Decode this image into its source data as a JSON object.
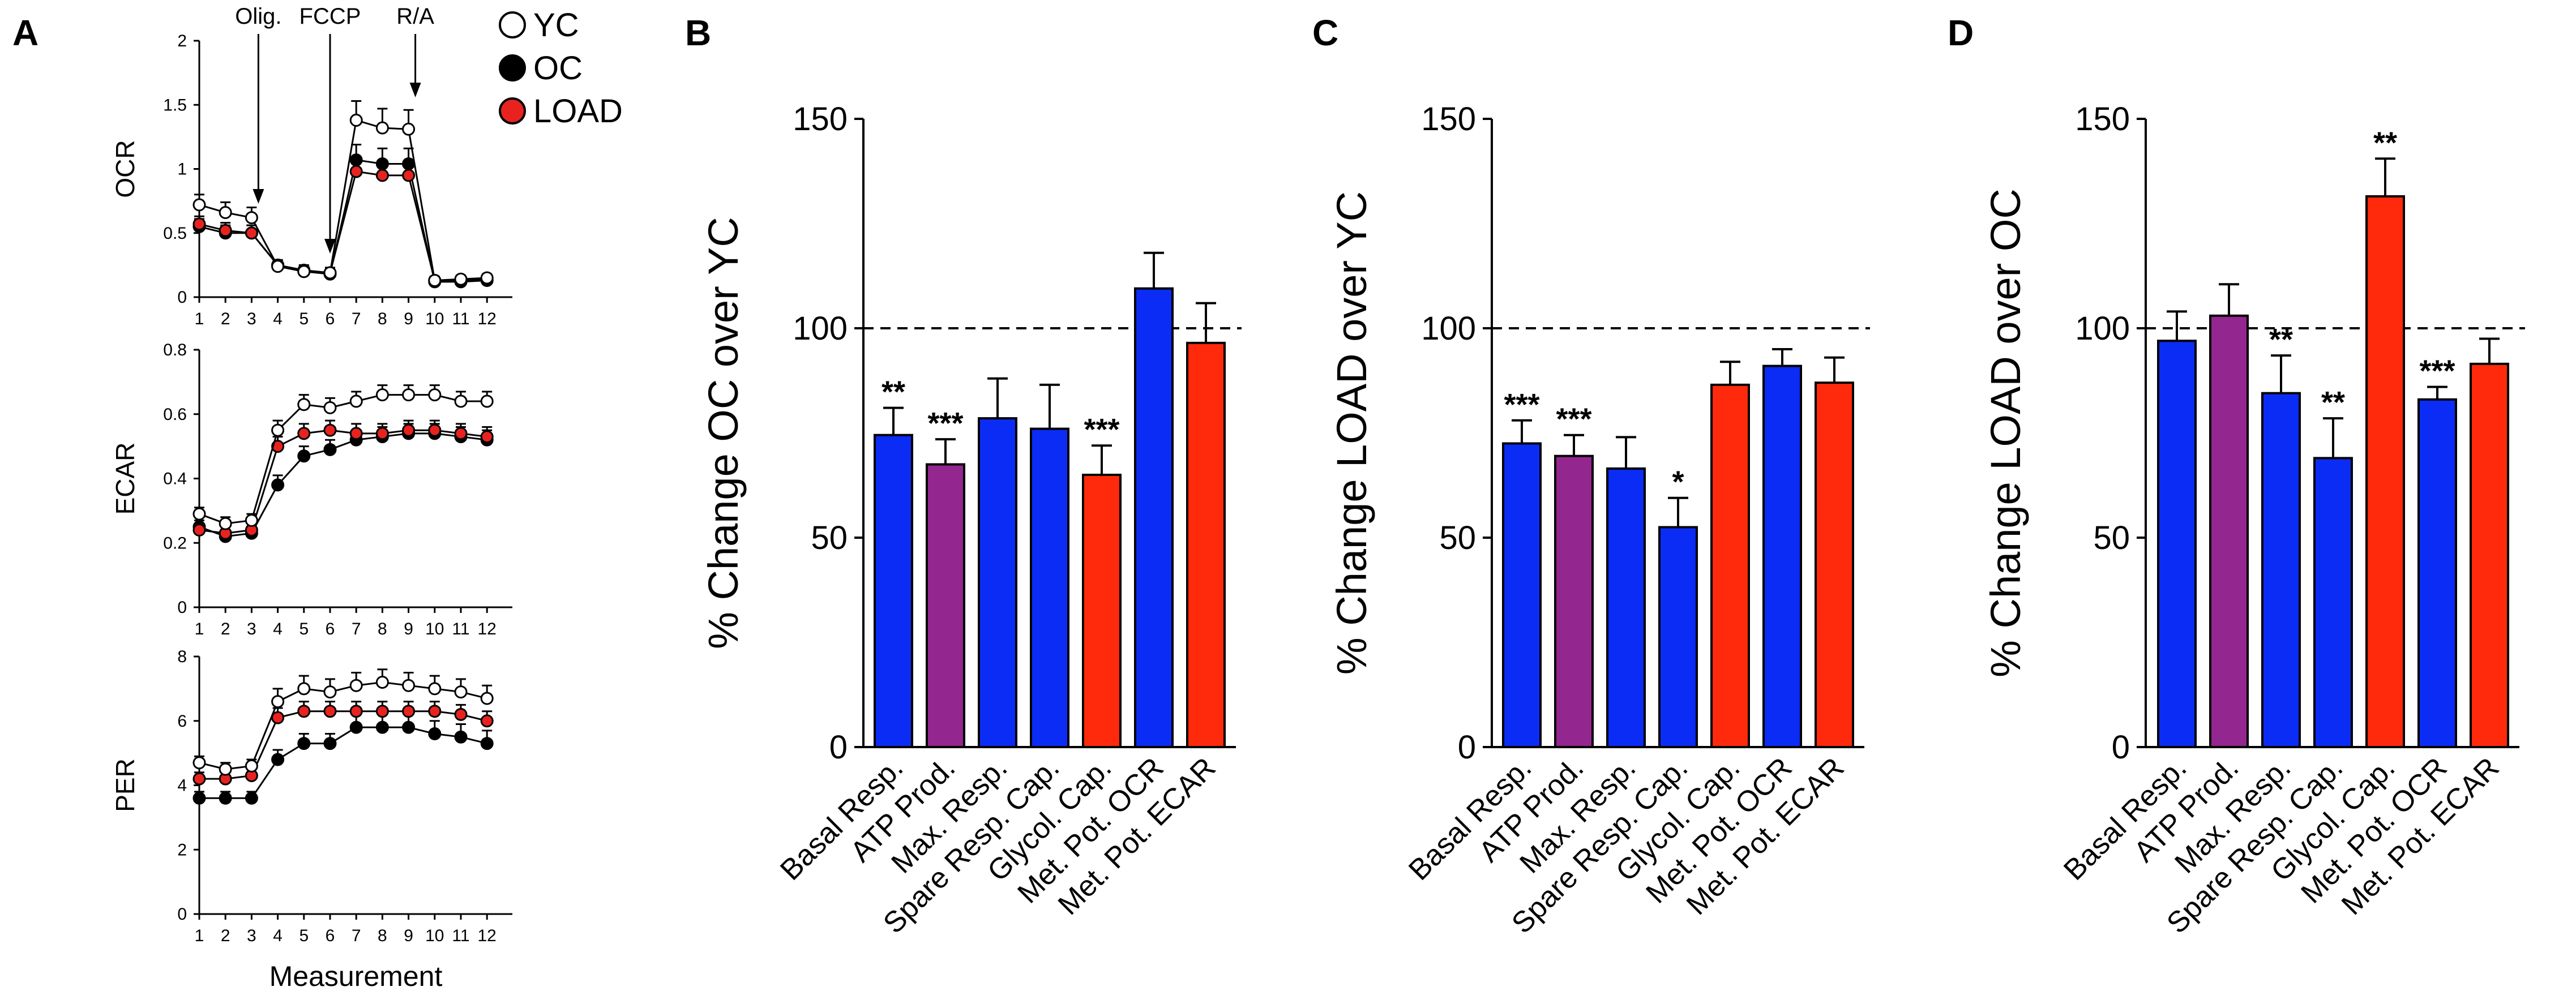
{
  "chart_data": [
    {
      "panel": "A",
      "type": "line",
      "title": "",
      "ylabel": "OCR",
      "xlabel": "",
      "ylim": [
        0,
        2
      ],
      "yticks": [
        "0",
        "0.5",
        "1",
        "1.5",
        "2"
      ],
      "x": [
        1,
        2,
        3,
        4,
        5,
        6,
        7,
        8,
        9,
        10,
        11,
        12
      ],
      "xticks": [
        "1",
        "2",
        "3",
        "4",
        "5",
        "6",
        "7",
        "8",
        "9",
        "10",
        "11",
        "12"
      ],
      "annotations": [
        {
          "label": "Olig.",
          "x": 3
        },
        {
          "label": "FCCP",
          "x": 6
        },
        {
          "label": "R/A",
          "x": 9
        }
      ],
      "series": [
        {
          "name": "YC",
          "color": "#ffffff",
          "values": [
            0.72,
            0.66,
            0.62,
            0.24,
            0.2,
            0.19,
            1.38,
            1.32,
            1.31,
            0.13,
            0.14,
            0.15
          ],
          "err": [
            0.08,
            0.08,
            0.08,
            0.04,
            0.04,
            0.04,
            0.15,
            0.15,
            0.15,
            0.03,
            0.03,
            0.03
          ]
        },
        {
          "name": "OC",
          "color": "#000000",
          "values": [
            0.55,
            0.5,
            0.5,
            0.25,
            0.2,
            0.18,
            1.07,
            1.04,
            1.04,
            0.12,
            0.12,
            0.13
          ],
          "err": [
            0.06,
            0.06,
            0.06,
            0.04,
            0.04,
            0.04,
            0.12,
            0.12,
            0.12,
            0.03,
            0.03,
            0.03
          ]
        },
        {
          "name": "LOAD",
          "color": "#e8231f",
          "values": [
            0.57,
            0.52,
            0.5,
            0.25,
            0.21,
            0.19,
            0.98,
            0.95,
            0.95,
            0.13,
            0.13,
            0.14
          ],
          "err": [
            0.06,
            0.06,
            0.06,
            0.04,
            0.04,
            0.04,
            0.11,
            0.11,
            0.11,
            0.03,
            0.03,
            0.03
          ]
        }
      ]
    },
    {
      "panel": "A",
      "type": "line",
      "title": "",
      "ylabel": "ECAR",
      "xlabel": "",
      "ylim": [
        0,
        0.8
      ],
      "yticks": [
        "0",
        "0.2",
        "0.4",
        "0.6",
        "0.8"
      ],
      "x": [
        1,
        2,
        3,
        4,
        5,
        6,
        7,
        8,
        9,
        10,
        11,
        12
      ],
      "xticks": [
        "1",
        "2",
        "3",
        "4",
        "5",
        "6",
        "7",
        "8",
        "9",
        "10",
        "11",
        "12"
      ],
      "series": [
        {
          "name": "YC",
          "color": "#ffffff",
          "values": [
            0.29,
            0.26,
            0.27,
            0.55,
            0.63,
            0.62,
            0.64,
            0.66,
            0.66,
            0.66,
            0.64,
            0.64
          ],
          "err": [
            0.02,
            0.02,
            0.02,
            0.03,
            0.03,
            0.03,
            0.03,
            0.03,
            0.03,
            0.03,
            0.03,
            0.03
          ]
        },
        {
          "name": "OC",
          "color": "#000000",
          "values": [
            0.25,
            0.22,
            0.23,
            0.38,
            0.47,
            0.49,
            0.52,
            0.53,
            0.54,
            0.54,
            0.53,
            0.52
          ],
          "err": [
            0.02,
            0.02,
            0.02,
            0.03,
            0.03,
            0.03,
            0.03,
            0.03,
            0.03,
            0.03,
            0.03,
            0.03
          ]
        },
        {
          "name": "LOAD",
          "color": "#e8231f",
          "values": [
            0.24,
            0.23,
            0.24,
            0.5,
            0.54,
            0.55,
            0.54,
            0.54,
            0.55,
            0.55,
            0.54,
            0.53
          ],
          "err": [
            0.02,
            0.02,
            0.02,
            0.03,
            0.03,
            0.03,
            0.03,
            0.03,
            0.03,
            0.03,
            0.03,
            0.03
          ]
        }
      ]
    },
    {
      "panel": "A",
      "type": "line",
      "title": "",
      "ylabel": "PER",
      "xlabel": "Measurement",
      "ylim": [
        0,
        8
      ],
      "yticks": [
        "0",
        "2",
        "4",
        "6",
        "8"
      ],
      "x": [
        1,
        2,
        3,
        4,
        5,
        6,
        7,
        8,
        9,
        10,
        11,
        12
      ],
      "xticks": [
        "1",
        "2",
        "3",
        "4",
        "5",
        "6",
        "7",
        "8",
        "9",
        "10",
        "11",
        "12"
      ],
      "series": [
        {
          "name": "YC",
          "color": "#ffffff",
          "values": [
            4.7,
            4.5,
            4.6,
            6.6,
            7.0,
            6.9,
            7.1,
            7.2,
            7.1,
            7.0,
            6.9,
            6.7
          ],
          "err": [
            0.2,
            0.2,
            0.2,
            0.4,
            0.4,
            0.4,
            0.4,
            0.4,
            0.4,
            0.4,
            0.4,
            0.4
          ]
        },
        {
          "name": "OC",
          "color": "#000000",
          "values": [
            3.6,
            3.6,
            3.6,
            4.8,
            5.3,
            5.3,
            5.8,
            5.8,
            5.8,
            5.6,
            5.5,
            5.3
          ],
          "err": [
            0.2,
            0.2,
            0.2,
            0.3,
            0.3,
            0.3,
            0.4,
            0.4,
            0.4,
            0.4,
            0.4,
            0.4
          ]
        },
        {
          "name": "LOAD",
          "color": "#e8231f",
          "values": [
            4.2,
            4.2,
            4.3,
            6.1,
            6.3,
            6.3,
            6.3,
            6.3,
            6.3,
            6.3,
            6.2,
            6.0
          ],
          "err": [
            0.2,
            0.2,
            0.2,
            0.3,
            0.3,
            0.3,
            0.3,
            0.3,
            0.3,
            0.3,
            0.3,
            0.3
          ]
        }
      ]
    },
    {
      "panel": "B",
      "type": "bar",
      "title": "",
      "ylabel": "% Change OC over YC",
      "xlabel": "",
      "ylim": [
        0,
        150
      ],
      "yticks": [
        "0",
        "50",
        "100",
        "150"
      ],
      "reference_line": 100,
      "categories": [
        "Basal Resp.",
        "ATP Prod.",
        "Max. Resp.",
        "Spare Resp. Cap.",
        "Glycol. Cap.",
        "Met. Pot. OCR",
        "Met. Pot. ECAR"
      ],
      "values": [
        74.5,
        67.5,
        78.5,
        76,
        65,
        109.5,
        96.5
      ],
      "errors": [
        6.5,
        6,
        9.5,
        10.5,
        7,
        8.5,
        9.5
      ],
      "colors": [
        "#0b2cf5",
        "#93268f",
        "#0b2cf5",
        "#0b2cf5",
        "#ff2a0b",
        "#0b2cf5",
        "#ff2a0b"
      ],
      "significance": [
        "**",
        "***",
        "",
        "",
        "***",
        "",
        ""
      ]
    },
    {
      "panel": "C",
      "type": "bar",
      "title": "",
      "ylabel": "% Change LOAD over YC",
      "xlabel": "",
      "ylim": [
        0,
        150
      ],
      "yticks": [
        "0",
        "50",
        "100",
        "150"
      ],
      "reference_line": 100,
      "categories": [
        "Basal Resp.",
        "ATP Prod.",
        "Max. Resp.",
        "Spare Resp. Cap.",
        "Glycol. Cap.",
        "Met. Pot. OCR",
        "Met. Pot. ECAR"
      ],
      "values": [
        72.5,
        69.5,
        66.5,
        52.5,
        86.5,
        91,
        87
      ],
      "errors": [
        5.5,
        5,
        7.5,
        7,
        5.5,
        4,
        6
      ],
      "colors": [
        "#0b2cf5",
        "#93268f",
        "#0b2cf5",
        "#0b2cf5",
        "#ff2a0b",
        "#0b2cf5",
        "#ff2a0b"
      ],
      "significance": [
        "***",
        "***",
        "",
        "*",
        "",
        "",
        ""
      ]
    },
    {
      "panel": "D",
      "type": "bar",
      "title": "",
      "ylabel": "% Change LOAD over OC",
      "xlabel": "",
      "ylim": [
        0,
        150
      ],
      "yticks": [
        "0",
        "50",
        "100",
        "150"
      ],
      "reference_line": 100,
      "categories": [
        "Basal Resp.",
        "ATP Prod.",
        "Max. Resp.",
        "Spare Resp. Cap.",
        "Glycol. Cap.",
        "Met. Pot. OCR",
        "Met. Pot. ECAR"
      ],
      "values": [
        97,
        103,
        84.5,
        69,
        131.5,
        83,
        91.5
      ],
      "errors": [
        7,
        7.5,
        9,
        9.5,
        9,
        3,
        6
      ],
      "colors": [
        "#0b2cf5",
        "#93268f",
        "#0b2cf5",
        "#0b2cf5",
        "#ff2a0b",
        "#0b2cf5",
        "#ff2a0b"
      ],
      "significance": [
        "",
        "",
        "**",
        "**",
        "**",
        "***",
        ""
      ]
    }
  ],
  "panel_labels": [
    "A",
    "B",
    "C",
    "D"
  ],
  "legend": [
    {
      "label": "YC",
      "fill": "#ffffff"
    },
    {
      "label": "OC",
      "fill": "#000000"
    },
    {
      "label": "LOAD",
      "fill": "#e8231f"
    }
  ]
}
